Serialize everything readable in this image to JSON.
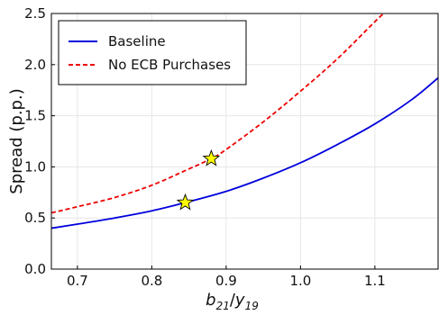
{
  "chart_data": {
    "type": "line",
    "title": "",
    "xlabel": {
      "base": "b",
      "sub1": "21",
      "slash": "/",
      "base2": "y",
      "sub2": "19"
    },
    "ylabel": "Spread (p.p.)",
    "xlim": [
      0.665,
      1.185
    ],
    "ylim": [
      0.0,
      2.5
    ],
    "xticks": [
      0.7,
      0.8,
      0.9,
      1.0,
      1.1
    ],
    "xtick_labels": [
      "0.7",
      "0.8",
      "0.9",
      "1.0",
      "1.1"
    ],
    "yticks": [
      0.0,
      0.5,
      1.0,
      1.5,
      2.0,
      2.5
    ],
    "ytick_labels": [
      "0.0",
      "0.5",
      "1.0",
      "1.5",
      "2.0",
      "2.5"
    ],
    "grid": true,
    "legend_position": "top-left",
    "series": [
      {
        "name": "Baseline",
        "color": "#0000dd",
        "style": "solid",
        "x": [
          0.665,
          0.7,
          0.75,
          0.8,
          0.845,
          0.9,
          0.95,
          1.0,
          1.05,
          1.1,
          1.15,
          1.185
        ],
        "y": [
          0.4,
          0.44,
          0.5,
          0.57,
          0.65,
          0.76,
          0.89,
          1.04,
          1.22,
          1.42,
          1.66,
          1.87
        ]
      },
      {
        "name": "No ECB Purchases",
        "color": "#ee0000",
        "style": "dashed",
        "x": [
          0.665,
          0.7,
          0.75,
          0.8,
          0.85,
          0.88,
          0.9,
          0.95,
          1.0,
          1.05,
          1.1,
          1.112
        ],
        "y": [
          0.55,
          0.61,
          0.7,
          0.82,
          0.98,
          1.08,
          1.17,
          1.44,
          1.74,
          2.06,
          2.42,
          2.5
        ]
      }
    ],
    "markers": [
      {
        "series": "Baseline",
        "x": 0.845,
        "y": 0.65,
        "shape": "star",
        "color": "#ffff00"
      },
      {
        "series": "No ECB Purchases",
        "x": 0.88,
        "y": 1.08,
        "shape": "star",
        "color": "#ffff00"
      }
    ]
  }
}
